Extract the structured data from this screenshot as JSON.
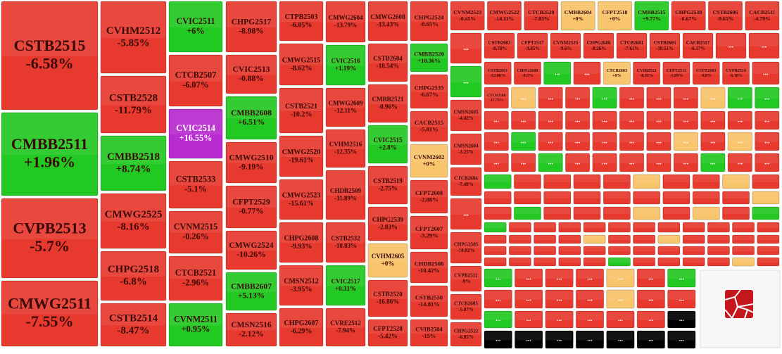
{
  "chart_data": {
    "type": "treemap",
    "categories": [
      "CSTB2515",
      "CMBB2511",
      "CVPB2513",
      "CMWG2511",
      "CVHM2512",
      "CSTB2528",
      "CMBB2518",
      "CMWG2525",
      "CHPG2518",
      "CSTB2514",
      "CVIC2511",
      "CTCB2507",
      "CVIC2514",
      "CSTB2533",
      "CVNM2515",
      "CTCB2521",
      "CVNM2511",
      "CHPG2517",
      "CVIC2513",
      "CMBB2608",
      "CMWG2510",
      "CFPT2529",
      "CMWG2524",
      "CMBB2607",
      "CMSN2516",
      "CTPB2503",
      "CMWG2515",
      "CSTB2521",
      "CMWG2520",
      "CMWG2523",
      "CHPG2608",
      "CMSN2512",
      "CHPG2607",
      "CMWG2604",
      "CVIC2516",
      "CMWG2609",
      "CVHM2516",
      "CHDB2509",
      "CSTB2532",
      "CVIC2517",
      "CVRE2512",
      "CMWG2608",
      "CSTB2604",
      "CMBB2521",
      "CVIC2515",
      "CSTB2519",
      "CHPG2539",
      "CVHM2605",
      "CSTB2520",
      "CFPT2528",
      "CHPG2524",
      "CMBB2520",
      "CHPG2535",
      "CACB2515",
      "CVNM2602",
      "CFPT2608",
      "CFPT2607",
      "CHDB2508",
      "CSTB2530",
      "CVIB2504",
      "CVNM2523",
      "CMWG2522",
      "CTCB2520",
      "CMBB2604",
      "CFPT2518",
      "CMBB2515",
      "CHPG2538",
      "CSTB2606",
      "CACB2511",
      "...",
      "...",
      "CMSN2605",
      "CMSN2604",
      "CTCB2604",
      "...",
      "CHPG2505",
      "CVPB2512",
      "CTCB2605",
      "CHPG2522",
      "CSTB2603",
      "CFPT2517",
      "CVNM2525",
      "CHPG2606",
      "CTCB2601",
      "CSTB2605",
      "CACB2517",
      "...",
      "...",
      "CSTB2601",
      "CHPG2609",
      "...",
      "...",
      "CTCB2603",
      "CVIB2512",
      "CFPT2513",
      "CFPT2603",
      "CVPB2516",
      "...",
      "CTCB2508",
      "...",
      "...",
      "...",
      "...",
      "...",
      "...",
      "...",
      "...",
      "...",
      "...",
      "...",
      "...",
      "...",
      "...",
      "...",
      "...",
      "...",
      "...",
      "...",
      "...",
      "...",
      "...",
      "...",
      "...",
      "...",
      "...",
      "...",
      "...",
      "...",
      "...",
      "...",
      "...",
      "...",
      "...",
      "...",
      "...",
      "...",
      "...",
      "...",
      "...",
      "...",
      "...",
      "...",
      null,
      null,
      null,
      null,
      null,
      null,
      null,
      null,
      null,
      null,
      null,
      null,
      null,
      null,
      null,
      null,
      null,
      null,
      null,
      null,
      null,
      null,
      null,
      null,
      null,
      null,
      null,
      null,
      null,
      null,
      null,
      null,
      null,
      null,
      null,
      null,
      null,
      null,
      null,
      null,
      null,
      null,
      null,
      null,
      null,
      null,
      null,
      null,
      null,
      null,
      null,
      null,
      null,
      null,
      null,
      null,
      null,
      null,
      null,
      null,
      null,
      null,
      null,
      null,
      null,
      null,
      null,
      null,
      null,
      null,
      null,
      null,
      null,
      null,
      null,
      null,
      null,
      null,
      "...",
      "...",
      "...",
      "...",
      "...",
      "...",
      "...",
      "...",
      "...",
      "...",
      "...",
      "...",
      "...",
      "...",
      "...",
      "...",
      "...",
      "...",
      "...",
      "...",
      "...",
      "...",
      "...",
      "...",
      "...",
      "...",
      "...",
      "..."
    ],
    "values": [
      -6.58,
      1.96,
      -5.7,
      -7.55,
      -5.85,
      -11.79,
      8.74,
      -8.16,
      -6.8,
      -8.47,
      6,
      -6.07,
      16.55,
      -5.1,
      -0.26,
      -2.96,
      0.95,
      -8.98,
      -0.88,
      6.51,
      -9.19,
      -0.77,
      -10.26,
      5.13,
      -2.12,
      -6.05,
      -8.62,
      -10.2,
      -19.61,
      -15.61,
      -9.93,
      -3.95,
      -6.29,
      -13.79,
      1.19,
      -12.11,
      -12.35,
      -11.89,
      -10.83,
      0.31,
      -7.94,
      -13.43,
      -18.54,
      -0.96,
      2.8,
      -2.75,
      -2.83,
      0,
      -16.86,
      -5.42,
      -8.65,
      10.36,
      -6.67,
      -5.01,
      0,
      -2.88,
      -3.29,
      -10.42,
      -14.81,
      -15,
      -0.45,
      -14.11,
      -7.83,
      0,
      0,
      9.77,
      -6.67,
      -9.65,
      -4.79,
      null,
      null,
      -4.42,
      -3.25,
      -7.49,
      null,
      -10.02,
      -9,
      -5.07,
      -6.85,
      -8.78,
      -3.85,
      -9.6,
      -8.26,
      -7.61,
      -10.51,
      -6.17,
      null,
      null,
      -12.06,
      -9.5,
      null,
      null,
      0,
      -8.35,
      -1.89,
      -9.8,
      -6.18,
      null,
      -17.79,
      null,
      null,
      null,
      null,
      null,
      null,
      null,
      null,
      null,
      null,
      null,
      null,
      null,
      null,
      null,
      null,
      null,
      null,
      null,
      null,
      null,
      null,
      null,
      null,
      null,
      null,
      null,
      null,
      null,
      null,
      null,
      null,
      null,
      null,
      null,
      null,
      null,
      null,
      null,
      null,
      null,
      null,
      null,
      null,
      null,
      null,
      null,
      null,
      null,
      null,
      null,
      null,
      null,
      null,
      null,
      null,
      null,
      null,
      null,
      null,
      null,
      null,
      null,
      null,
      null,
      null,
      null,
      null,
      null,
      null,
      null,
      null,
      null,
      null,
      null,
      null,
      null,
      null,
      null,
      null,
      null,
      null,
      null,
      null,
      null,
      null,
      null,
      null,
      null,
      null,
      null,
      null,
      null,
      null,
      null,
      null,
      null,
      null,
      null,
      null,
      null,
      null,
      null,
      null,
      null,
      null,
      null,
      null,
      null,
      null,
      null,
      null,
      null,
      null,
      null,
      null,
      null,
      null,
      null,
      null,
      null,
      null,
      null,
      null,
      null,
      null,
      null,
      null,
      null,
      null,
      null,
      null,
      null,
      null,
      null,
      null,
      null,
      null,
      null,
      null,
      null,
      null,
      null,
      null,
      null,
      null,
      null,
      null,
      null
    ],
    "value_labels": [
      "-6.58%",
      "+1.96%",
      "-5.7%",
      "-7.55%",
      "-5.85%",
      "-11.79%",
      "+8.74%",
      "-8.16%",
      "-6.8%",
      "-8.47%",
      "+6%",
      "-6.07%",
      "+16.55%",
      "-5.1%",
      "-0.26%",
      "-2.96%",
      "+0.95%",
      "-8.98%",
      "-0.88%",
      "+6.51%",
      "-9.19%",
      "-0.77%",
      "-10.26%",
      "+5.13%",
      "-2.12%",
      "-6.05%",
      "-8.62%",
      "-10.2%",
      "-19.61%",
      "-15.61%",
      "-9.93%",
      "-3.95%",
      "-6.29%",
      "-13.79%",
      "+1.19%",
      "-12.11%",
      "-12.35%",
      "-11.89%",
      "-10.83%",
      "+0.31%",
      "-7.94%",
      "-13.43%",
      "-18.54%",
      "-0.96%",
      "+2.8%",
      "-2.75%",
      "-2.83%",
      "+0%",
      "-16.86%",
      "-5.42%",
      "-8.65%",
      "+10.36%",
      "-6.67%",
      "-5.01%",
      "+0%",
      "-2.88%",
      "-3.29%",
      "-10.42%",
      "-14.81%",
      "-15%",
      "-0.45%",
      "-14.11%",
      "-7.83%",
      "+0%",
      "+0%",
      "+9.77%",
      "-6.67%",
      "-9.65%",
      "-4.79%",
      null,
      null,
      "-4.42%",
      "-3.25%",
      "-7.49%",
      null,
      "-10.02%",
      "-9%",
      "-5.07%",
      "-6.85%",
      "-8.78%",
      "-3.85%",
      "-9.6%",
      "-8.26%",
      "-7.61%",
      "-10.51%",
      "-6.17%",
      null,
      null,
      "-12.06%",
      "-9.5%",
      null,
      null,
      "+0%",
      "-8.35%",
      "-1.89%",
      "-9.8%",
      "-6.18%",
      null,
      "-17.79%",
      null,
      null,
      null,
      null,
      null,
      null,
      null,
      null,
      null,
      null,
      null,
      null,
      null,
      null,
      null,
      null,
      null,
      null,
      null,
      null,
      null,
      null,
      null,
      null,
      null,
      null,
      null,
      null,
      null,
      null,
      null,
      null,
      null,
      null,
      null,
      null,
      null,
      null,
      null,
      null,
      null,
      null,
      null,
      null,
      null,
      null,
      null,
      null,
      null,
      null,
      null,
      null,
      null,
      null,
      null,
      null,
      null,
      null,
      null,
      null,
      null,
      null,
      null,
      null,
      null,
      null,
      null,
      null,
      null,
      null,
      null,
      null,
      null,
      null,
      null,
      null,
      null,
      null,
      null,
      null,
      null,
      null,
      null,
      null,
      null,
      null,
      null,
      null,
      null,
      null,
      null,
      null,
      null,
      null,
      null,
      null,
      null,
      null,
      null,
      null,
      null,
      null,
      null,
      null,
      null,
      null,
      null,
      null,
      null,
      null,
      null,
      null,
      null,
      null,
      null,
      null,
      null,
      null,
      null,
      null,
      null,
      null,
      null,
      null,
      null,
      null,
      null,
      null,
      null,
      null,
      null,
      null,
      null,
      null,
      null,
      null,
      null,
      null,
      null,
      null,
      null,
      null,
      null,
      null,
      null,
      null,
      null,
      null,
      null
    ],
    "palette": {
      "R": "#e8392f",
      "G": "#22c922",
      "Y": "#f8c46c",
      "P": "#b82bd0"
    },
    "tile_colors": "RGRRRRGRRRGRPRRRGRRGRRRGRRRRRRRRRRGRRRRGRRRRGRRYRRRGRRYRRRRRRRRYYGRRRRGRRRRRRRRRRRRRRRRRRRGRYRRRRRRYRRGRRRYGGRRRRRRRRRRRRGRRRRRYRYRRRGRRRRRGRRGRRRRYRRYRRRRRRRRRRYRGRRRYRYRGGRRRRRRRRRRRRRRRYRRYRRRRRRRRRRRRRRRRRRRRRGRRRRYRGRRRYRGRRRRYRRGRRRRR",
    "logo": "FoamTree"
  }
}
